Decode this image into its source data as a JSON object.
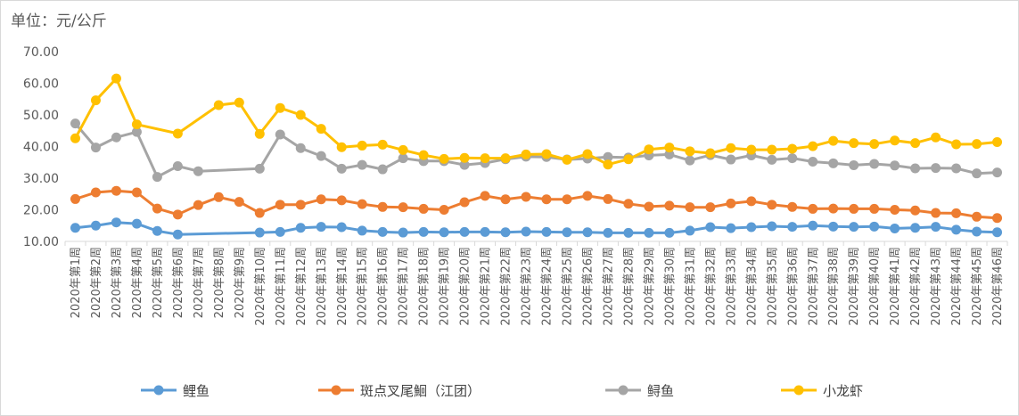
{
  "unit_label": "单位：元/公斤",
  "chart_data": {
    "type": "line",
    "title": "",
    "xlabel": "",
    "ylabel": "单位：元/公斤",
    "ylim": [
      10,
      70
    ],
    "yticks": [
      "10.00",
      "20.00",
      "30.00",
      "40.00",
      "50.00",
      "60.00",
      "70.00"
    ],
    "grid": false,
    "legend_position": "bottom",
    "categories": [
      "2020年第1周",
      "2020年第2周",
      "2020年第3周",
      "2020年第4周",
      "2020年第5周",
      "2020年第6周",
      "2020年第7周",
      "2020年第8周",
      "2020年第9周",
      "2020年第10周",
      "2020年第11周",
      "2020年第12周",
      "2020年第13周",
      "2020年第14周",
      "2020年第15周",
      "2020年第16周",
      "2020年第17周",
      "2020年第18周",
      "2020年第19周",
      "2020年第20周",
      "2020年第21周",
      "2020年第22周",
      "2020年第23周",
      "2020年第24周",
      "2020年第25周",
      "2020年第26周",
      "2020年第27周",
      "2020年第28周",
      "2020年第29周",
      "2020年第30周",
      "2020年第31周",
      "2020年第32周",
      "2020年第33周",
      "2020年第34周",
      "2020年第35周",
      "2020年第36周",
      "2020年第37周",
      "2020年第38周",
      "2020年第39周",
      "2020年第40周",
      "2020年第41周",
      "2020年第42周",
      "2020年第43周",
      "2020年第44周",
      "2020年第45周",
      "2020年第46周"
    ],
    "series": [
      {
        "name": "鲤鱼",
        "color": "#5b9bd5",
        "values": [
          14.3,
          15.0,
          16.0,
          15.6,
          13.3,
          12.2,
          null,
          null,
          null,
          12.8,
          13.0,
          14.3,
          14.6,
          14.5,
          13.4,
          13.0,
          12.8,
          13.0,
          12.9,
          13.0,
          13.0,
          12.9,
          13.1,
          13.0,
          12.9,
          12.9,
          12.7,
          12.7,
          12.7,
          12.7,
          13.4,
          14.5,
          14.2,
          14.5,
          14.8,
          14.6,
          15.0,
          14.7,
          14.6,
          14.7,
          14.1,
          14.3,
          14.6,
          13.7,
          13.1,
          12.9
        ]
      },
      {
        "name": "斑点叉尾鮰（江团）",
        "color": "#ed7d31",
        "values": [
          23.4,
          25.5,
          26.0,
          25.5,
          20.4,
          18.5,
          21.5,
          24.0,
          22.5,
          19.0,
          21.6,
          21.6,
          23.3,
          23.0,
          21.8,
          20.9,
          20.8,
          20.3,
          20.0,
          22.4,
          24.4,
          23.3,
          24.1,
          23.3,
          23.3,
          24.4,
          23.4,
          21.9,
          21.0,
          21.3,
          20.8,
          20.8,
          22.0,
          22.7,
          21.6,
          20.9,
          20.3,
          20.4,
          20.3,
          20.3,
          20.0,
          19.8,
          19.0,
          18.9,
          17.8,
          17.4
        ]
      },
      {
        "name": "鲟鱼",
        "color": "#a5a5a5",
        "values": [
          47.3,
          39.7,
          42.9,
          44.6,
          30.4,
          33.8,
          32.2,
          null,
          null,
          33.0,
          43.8,
          39.5,
          37.0,
          33.0,
          34.2,
          32.8,
          36.3,
          35.4,
          35.4,
          34.2,
          34.8,
          36.0,
          36.8,
          36.7,
          35.9,
          36.2,
          36.7,
          36.5,
          37.2,
          37.5,
          35.6,
          37.3,
          35.9,
          37.2,
          35.8,
          36.3,
          35.2,
          34.7,
          34.1,
          34.5,
          34.0,
          33.1,
          33.2,
          33.1,
          31.5,
          31.8
        ]
      },
      {
        "name": "小龙虾",
        "color": "#ffc000",
        "values": [
          42.6,
          54.6,
          61.5,
          47.0,
          null,
          44.1,
          null,
          53.1,
          53.9,
          44.0,
          52.2,
          50.0,
          45.6,
          39.8,
          40.3,
          40.6,
          38.9,
          37.3,
          36.1,
          36.4,
          36.3,
          36.3,
          37.5,
          37.6,
          35.8,
          37.6,
          34.3,
          36.0,
          39.1,
          39.7,
          38.5,
          37.9,
          39.5,
          39.0,
          39.0,
          39.3,
          40.1,
          41.8,
          41.1,
          40.8,
          41.9,
          41.1,
          42.9,
          40.7,
          40.8,
          41.4
        ]
      }
    ]
  }
}
